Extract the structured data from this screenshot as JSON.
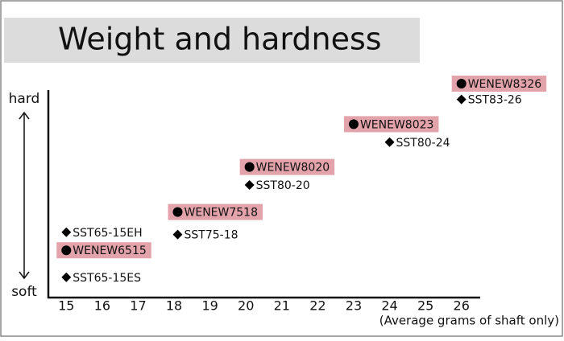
{
  "chart_data": {
    "type": "scatter",
    "title": "Weight and hardness",
    "y_label_top": "hard",
    "y_label_bottom": "soft",
    "x_label": "(Average grams of shaft only)",
    "xlim": [
      14.5,
      26.5
    ],
    "xticks": [
      15,
      16,
      17,
      18,
      19,
      20,
      21,
      22,
      23,
      24,
      25,
      26
    ],
    "ylim": [
      0,
      100
    ],
    "series": [
      {
        "marker": "circle",
        "color": "#000000",
        "highlight": "#e3a3ab",
        "labels": [
          "WENEW6515",
          "WENEW7518",
          "WENEW8020",
          "WENEW8023",
          "WENEW8326"
        ],
        "x": [
          15,
          18.1,
          20.1,
          23,
          26
        ],
        "values": [
          21,
          38,
          58,
          77,
          95
        ]
      },
      {
        "marker": "diamond",
        "color": "#000000",
        "labels": [
          "SST65-15EH",
          "SST65-15ES",
          "SST75-18",
          "SST80-20",
          "SST80-24",
          "SST83-26"
        ],
        "x": [
          15,
          15,
          18.1,
          20.1,
          24,
          26
        ],
        "values": [
          29,
          9,
          28,
          50,
          69,
          88
        ]
      }
    ]
  }
}
